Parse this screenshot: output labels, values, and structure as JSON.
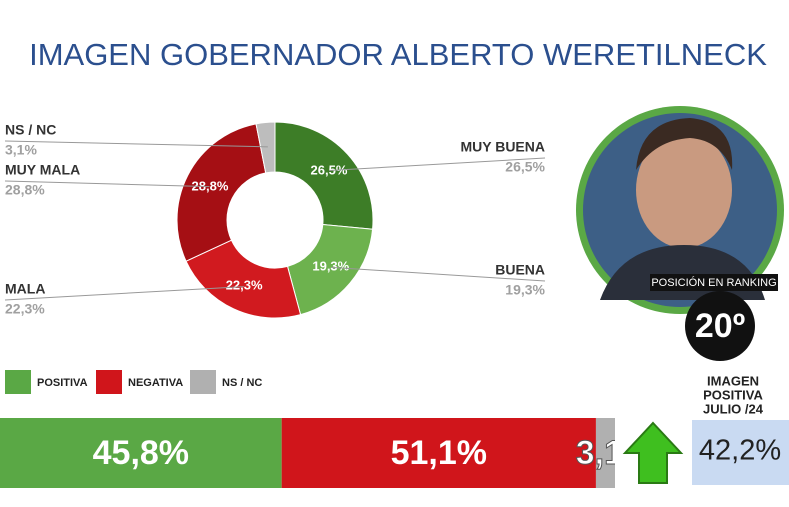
{
  "title": "IMAGEN GOBERNADOR  ALBERTO WERETILNECK",
  "chart_data": [
    {
      "type": "pie",
      "categories": [
        "MUY BUENA",
        "BUENA",
        "MALA",
        "MUY MALA",
        "NS / NC"
      ],
      "values": [
        26.5,
        19.3,
        22.3,
        28.8,
        3.1
      ],
      "value_labels": [
        "26,5%",
        "19,3%",
        "22,3%",
        "28,8%",
        "3,1%"
      ],
      "colors": [
        "#3d7d27",
        "#6db24e",
        "#d11a1f",
        "#a50f14",
        "#bdbdbd"
      ]
    },
    {
      "type": "bar",
      "orientation": "horizontal",
      "stacked": true,
      "categories": [
        null
      ],
      "xlim": [
        0,
        100
      ],
      "series": [
        {
          "name": "POSITIVA",
          "color": "#5aa845",
          "values": [
            45.8
          ],
          "value_labels": [
            "45,8%"
          ]
        },
        {
          "name": "NEGATIVA",
          "color": "#d0151b",
          "values": [
            51.1
          ],
          "value_labels": [
            "51,1%"
          ]
        },
        {
          "name": "NS / NC",
          "color": "#b0b0b0",
          "values": [
            3.1
          ],
          "value_labels": [
            "3,1"
          ]
        }
      ]
    }
  ],
  "ranking": {
    "title": "POSICIÓN EN RANKING",
    "position": {
      "value": 20,
      "label": "20º"
    }
  },
  "positive_image": {
    "title": [
      "IMAGEN",
      "POSITIVA",
      "JULIO /24"
    ],
    "value": 42.2,
    "value_label": "42,2%"
  }
}
